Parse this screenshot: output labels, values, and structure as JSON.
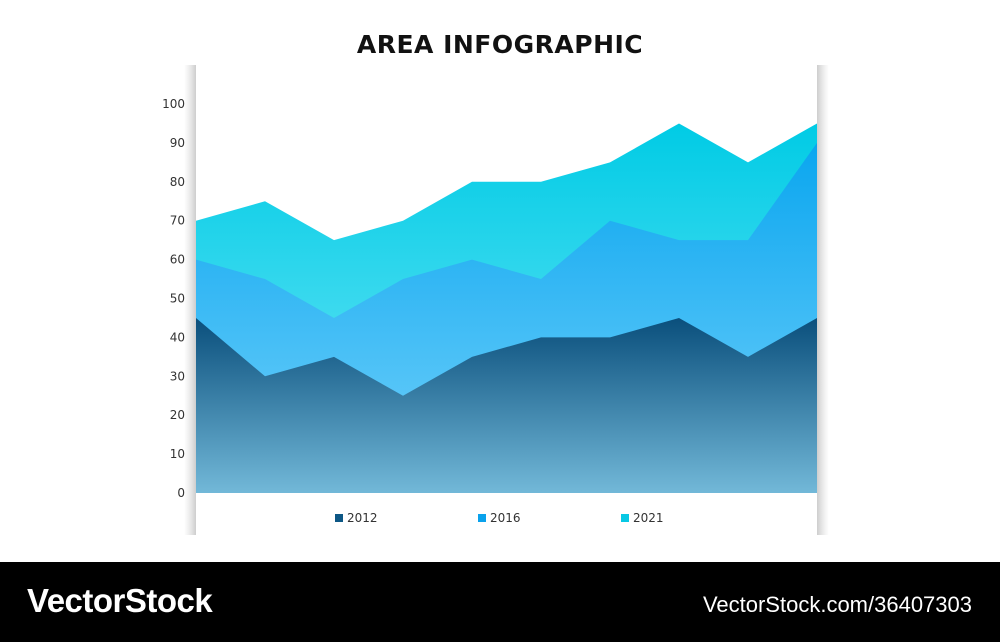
{
  "chart_data": {
    "type": "area",
    "title": "AREA INFOGRAPHIC",
    "xlabel": "",
    "ylabel": "",
    "ylim": [
      0,
      100
    ],
    "yticks": [
      0,
      10,
      20,
      30,
      40,
      50,
      60,
      70,
      80,
      90,
      100
    ],
    "x": [
      1,
      2,
      3,
      4,
      5,
      6,
      7,
      8,
      9,
      10
    ],
    "series": [
      {
        "name": "2012",
        "color": "#0d5785",
        "values": [
          45,
          30,
          35,
          25,
          35,
          40,
          40,
          45,
          35,
          45
        ]
      },
      {
        "name": "2016",
        "color": "#0aa2ec",
        "values": [
          60,
          55,
          45,
          55,
          60,
          55,
          70,
          65,
          65,
          90
        ]
      },
      {
        "name": "2021",
        "color": "#08c8e4",
        "values": [
          70,
          75,
          65,
          70,
          80,
          80,
          85,
          95,
          85,
          95
        ]
      }
    ],
    "grid": false,
    "legend_position": "bottom"
  },
  "footer": {
    "logo_text": "VectorStock",
    "id_text": "VectorStock.com/36407303"
  }
}
